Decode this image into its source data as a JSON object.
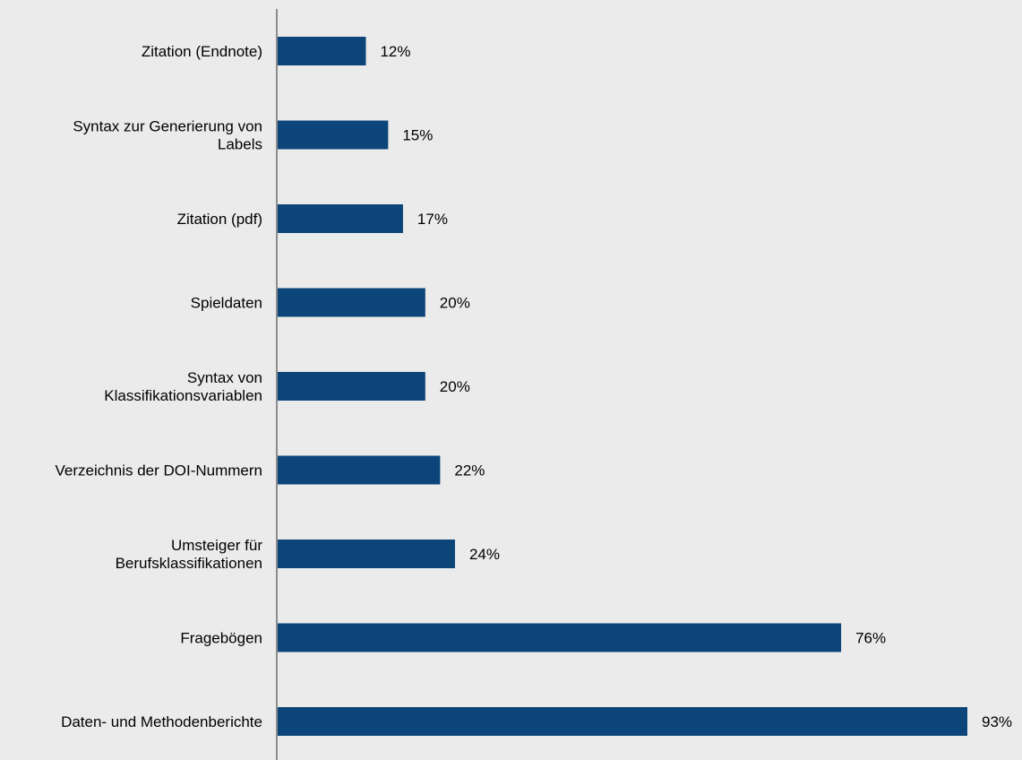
{
  "colors": {
    "background": "#ebebeb",
    "bar": "#0b457a",
    "axis": "#8c8c8c",
    "text": "#000000"
  },
  "chart_data": {
    "type": "bar",
    "orientation": "horizontal",
    "title": "",
    "xlabel": "",
    "ylabel": "",
    "xlim": [
      0,
      100
    ],
    "grid": false,
    "legend": "none",
    "value_format": "percent",
    "categories": [
      "Zitation (Endnote)",
      "Syntax zur Generierung von Labels",
      "Zitation (pdf)",
      "Spieldaten",
      "Syntax von Klassifikationsvariablen",
      "Verzeichnis der DOI-Nummern",
      "Umsteiger für Berufsklassifikationen",
      "Fragebögen",
      "Daten- und Methodenberichte"
    ],
    "category_lines": [
      [
        "Zitation (Endnote)"
      ],
      [
        "Syntax zur Generierung von",
        "Labels"
      ],
      [
        "Zitation (pdf)"
      ],
      [
        "Spieldaten"
      ],
      [
        "Syntax von",
        "Klassifikationsvariablen"
      ],
      [
        "Verzeichnis der DOI-Nummern"
      ],
      [
        "Umsteiger für",
        "Berufsklassifikationen"
      ],
      [
        "Fragebögen"
      ],
      [
        "Daten- und Methodenberichte"
      ]
    ],
    "values": [
      12,
      15,
      17,
      20,
      20,
      22,
      24,
      76,
      93
    ],
    "value_labels": [
      "12%",
      "15%",
      "17%",
      "20%",
      "20%",
      "22%",
      "24%",
      "76%",
      "93%"
    ]
  }
}
